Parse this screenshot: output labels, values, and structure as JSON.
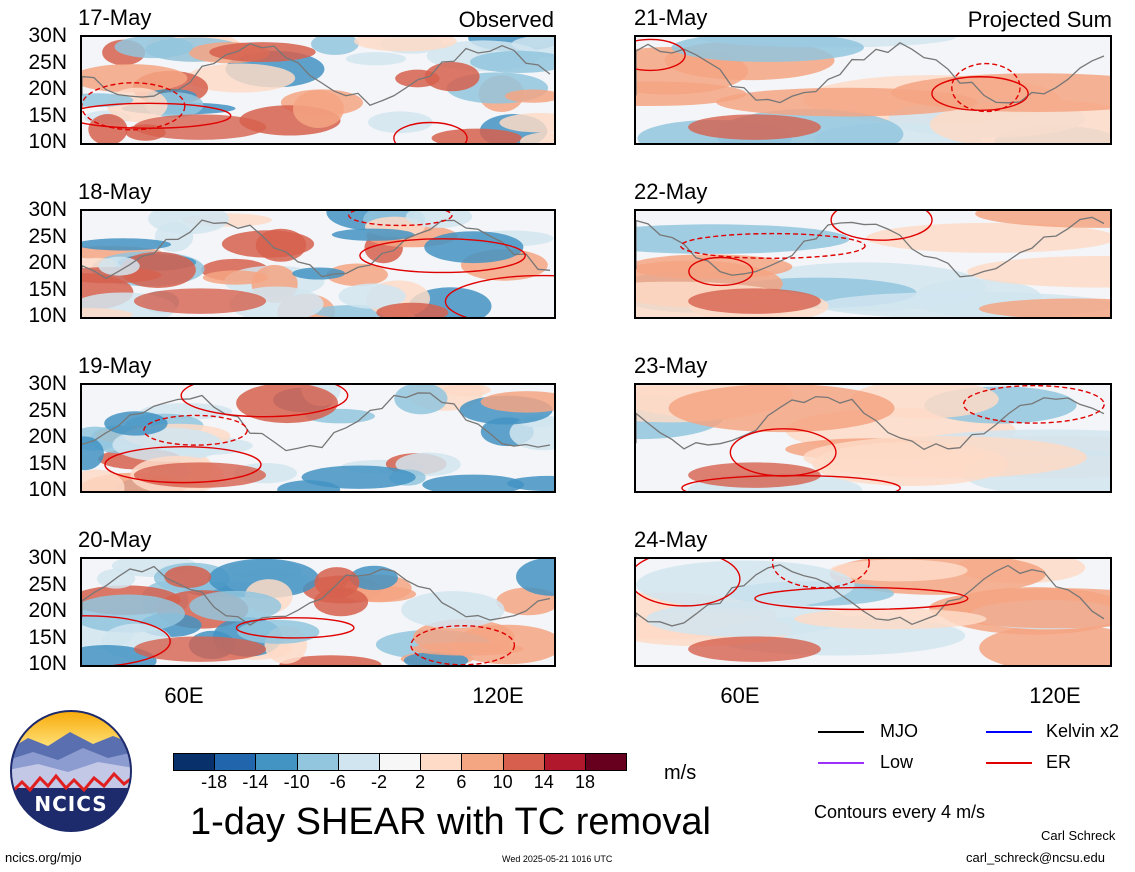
{
  "panels_left": [
    {
      "date": "17-May",
      "tag": "Observed"
    },
    {
      "date": "18-May",
      "tag": ""
    },
    {
      "date": "19-May",
      "tag": ""
    },
    {
      "date": "20-May",
      "tag": ""
    }
  ],
  "panels_right": [
    {
      "date": "21-May",
      "tag": "Projected Sum"
    },
    {
      "date": "22-May",
      "tag": ""
    },
    {
      "date": "23-May",
      "tag": ""
    },
    {
      "date": "24-May",
      "tag": ""
    }
  ],
  "lat_labels": [
    "30N",
    "25N",
    "20N",
    "15N",
    "10N"
  ],
  "lon_labels": [
    "60E",
    "120E"
  ],
  "colorbar": {
    "colors": [
      "#08306b",
      "#2166ac",
      "#4393c3",
      "#92c5de",
      "#d1e5f0",
      "#f7f7f7",
      "#fddbc7",
      "#f4a582",
      "#d6604d",
      "#b2182b",
      "#67001f"
    ],
    "labels": [
      "-18",
      "-14",
      "-10",
      "-6",
      "-2",
      "2",
      "6",
      "10",
      "14",
      "18"
    ],
    "units": "m/s"
  },
  "title": "1-day SHEAR with TC removal",
  "legend": [
    {
      "label": "MJO",
      "color": "#000000"
    },
    {
      "label": "Kelvin x2",
      "color": "#0000ff"
    },
    {
      "label": "Low",
      "color": "#9b30ff"
    },
    {
      "label": "ER",
      "color": "#e00000"
    }
  ],
  "contour_note": "Contours every 4 m/s",
  "logo": {
    "text": "NCICS"
  },
  "footer": {
    "url": "ncics.org/mjo",
    "timestamp": "Wed 2025-05-21 1016 UTC",
    "author": "Carl Schreck",
    "email": "carl_schreck@ncsu.edu"
  }
}
